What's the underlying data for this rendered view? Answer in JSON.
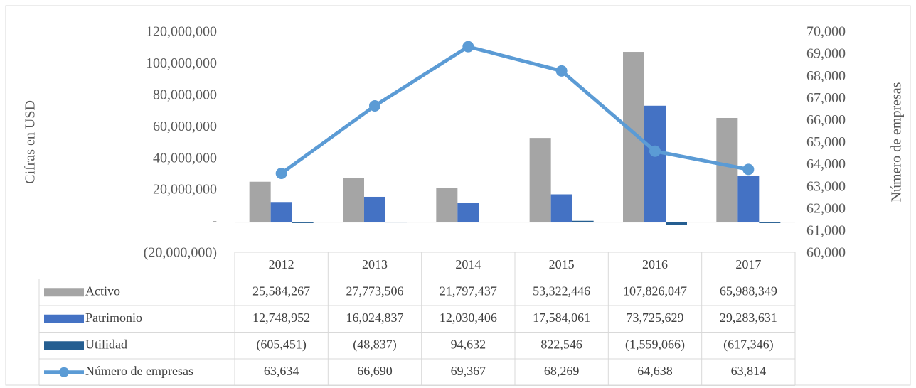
{
  "chart_data": {
    "type": "bar",
    "ylabel": "Cifras en USD",
    "y2label": "Número de empresas",
    "categories": [
      "2012",
      "2013",
      "2014",
      "2015",
      "2016",
      "2017"
    ],
    "series": [
      {
        "name": "Activo",
        "color": "#a5a5a5",
        "values": [
          25584267,
          27773506,
          21797437,
          53322446,
          107826047,
          65988349
        ],
        "value_labels": [
          "25,584,267",
          "27,773,506",
          "21,797,437",
          "53,322,446",
          "107,826,047",
          "65,988,349"
        ]
      },
      {
        "name": "Patrimonio",
        "color": "#4472c4",
        "values": [
          12748952,
          16024837,
          12030406,
          17584061,
          73725629,
          29283631
        ],
        "value_labels": [
          "12,748,952",
          "16,024,837",
          "12,030,406",
          "17,584,061",
          "73,725,629",
          "29,283,631"
        ]
      },
      {
        "name": "Utilidad",
        "color": "#255e91",
        "values": [
          -605451,
          -48837,
          94632,
          822546,
          -1559066,
          -617346
        ],
        "value_labels": [
          "(605,451)",
          "(48,837)",
          "94,632",
          "822,546",
          "(1,559,066)",
          "(617,346)"
        ]
      },
      {
        "name": "Número de empresas",
        "type": "line",
        "axis": "y2",
        "color": "#5b9bd5",
        "values": [
          63634,
          66690,
          69367,
          68269,
          64638,
          63814
        ],
        "value_labels": [
          "63,634",
          "66,690",
          "69,367",
          "68,269",
          "64,638",
          "63,814"
        ]
      }
    ],
    "ylim": [
      -20000000,
      120000000
    ],
    "yticks": [
      {
        "value": -20000000,
        "label": "(20,000,000)"
      },
      {
        "value": 0,
        "label": "-"
      },
      {
        "value": 20000000,
        "label": "20,000,000"
      },
      {
        "value": 40000000,
        "label": "40,000,000"
      },
      {
        "value": 60000000,
        "label": "60,000,000"
      },
      {
        "value": 80000000,
        "label": "80,000,000"
      },
      {
        "value": 100000000,
        "label": "100,000,000"
      },
      {
        "value": 120000000,
        "label": "120,000,000"
      }
    ],
    "y2lim": [
      60000,
      70000
    ],
    "y2ticks": [
      {
        "value": 60000,
        "label": "60,000"
      },
      {
        "value": 61000,
        "label": "61,000"
      },
      {
        "value": 62000,
        "label": "62,000"
      },
      {
        "value": 63000,
        "label": "63,000"
      },
      {
        "value": 64000,
        "label": "64,000"
      },
      {
        "value": 65000,
        "label": "65,000"
      },
      {
        "value": 66000,
        "label": "66,000"
      },
      {
        "value": 67000,
        "label": "67,000"
      },
      {
        "value": 68000,
        "label": "68,000"
      },
      {
        "value": 69000,
        "label": "69,000"
      },
      {
        "value": 70000,
        "label": "70,000"
      }
    ]
  }
}
